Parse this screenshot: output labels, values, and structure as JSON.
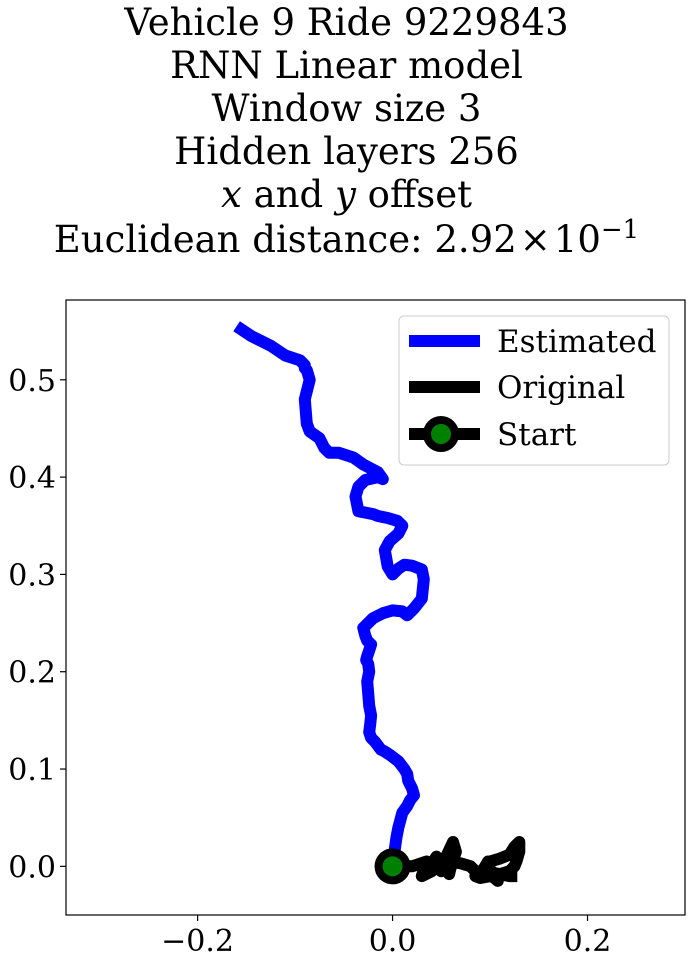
{
  "chart_data": {
    "type": "line",
    "title_lines": [
      "Vehicle 9 Ride 9229843",
      "RNN Linear model",
      "Window size 3",
      "Hidden layers 256"
    ],
    "offset_line": {
      "var_x": "x",
      "conj": " and ",
      "var_y": "y",
      "rest": " offset"
    },
    "distance_line": {
      "prefix": "Euclidean distance: ",
      "mantissa": "2.92",
      "times": "×",
      "base": "10",
      "exponent": "−1"
    },
    "xlim": [
      -0.335,
      0.3
    ],
    "ylim": [
      -0.05,
      0.582
    ],
    "x_ticks": [
      -0.2,
      0.0,
      0.2
    ],
    "x_tick_labels": [
      "−0.2",
      "0.0",
      "0.2"
    ],
    "y_ticks": [
      0.0,
      0.1,
      0.2,
      0.3,
      0.4,
      0.5
    ],
    "y_tick_labels": [
      "0.0",
      "0.1",
      "0.2",
      "0.3",
      "0.4",
      "0.5"
    ],
    "legend_position": "upper right",
    "series": [
      {
        "name": "Estimated",
        "color": "#0000ff",
        "x": [
          0.0,
          0.002,
          0.004,
          0.006,
          0.01,
          0.015,
          0.018,
          0.022,
          0.02,
          0.016,
          0.015,
          0.012,
          0.006,
          -0.002,
          -0.008,
          -0.012,
          -0.018,
          -0.022,
          -0.024,
          -0.023,
          -0.022,
          -0.024,
          -0.025,
          -0.026,
          -0.024,
          -0.025,
          -0.027,
          -0.026,
          -0.024,
          -0.022,
          -0.026,
          -0.028,
          -0.03,
          -0.02,
          -0.01,
          0.0,
          0.01,
          0.015,
          0.022,
          0.03,
          0.032,
          0.03,
          0.02,
          0.012,
          0.006,
          0.0,
          -0.005,
          -0.008,
          -0.003,
          0.006,
          0.01,
          0.005,
          -0.005,
          -0.015,
          -0.02,
          -0.035,
          -0.038,
          -0.035,
          -0.028,
          -0.015,
          -0.01,
          -0.015,
          -0.03,
          -0.04,
          -0.055,
          -0.065,
          -0.07,
          -0.075,
          -0.085,
          -0.088,
          -0.09,
          -0.085,
          -0.088,
          -0.09,
          -0.09,
          -0.092,
          -0.095,
          -0.11,
          -0.125,
          -0.135,
          -0.145,
          -0.16
        ],
        "y": [
          0.0,
          0.015,
          0.03,
          0.04,
          0.055,
          0.062,
          0.068,
          0.073,
          0.08,
          0.088,
          0.095,
          0.1,
          0.108,
          0.114,
          0.118,
          0.12,
          0.128,
          0.132,
          0.138,
          0.145,
          0.155,
          0.165,
          0.178,
          0.19,
          0.2,
          0.208,
          0.212,
          0.216,
          0.222,
          0.228,
          0.232,
          0.237,
          0.245,
          0.255,
          0.26,
          0.263,
          0.262,
          0.258,
          0.265,
          0.275,
          0.295,
          0.305,
          0.309,
          0.31,
          0.306,
          0.3,
          0.308,
          0.325,
          0.334,
          0.342,
          0.35,
          0.355,
          0.358,
          0.36,
          0.362,
          0.365,
          0.38,
          0.39,
          0.397,
          0.4,
          0.398,
          0.405,
          0.413,
          0.42,
          0.425,
          0.425,
          0.43,
          0.44,
          0.447,
          0.455,
          0.48,
          0.5,
          0.51,
          0.512,
          0.515,
          0.517,
          0.52,
          0.525,
          0.535,
          0.54,
          0.545,
          0.555
        ]
      },
      {
        "name": "Original",
        "color": "#000000",
        "x": [
          0.0,
          0.02,
          0.035,
          0.03,
          0.04,
          0.045,
          0.04,
          0.05,
          0.055,
          0.062,
          0.065,
          0.06,
          0.058,
          0.06,
          0.07,
          0.08,
          0.085,
          0.09,
          0.095,
          0.098,
          0.1,
          0.105,
          0.108,
          0.102,
          0.096,
          0.1,
          0.11,
          0.12,
          0.125,
          0.13,
          0.13,
          0.127,
          0.125,
          0.12,
          0.11,
          0.1,
          0.09,
          0.085,
          0.09,
          0.1,
          0.11,
          0.12,
          0.128
        ],
        "y": [
          0.0,
          0.0,
          0.005,
          -0.01,
          -0.005,
          0.01,
          0.002,
          -0.005,
          0.01,
          0.025,
          0.015,
          0.0,
          -0.008,
          0.005,
          0.003,
          0.0,
          -0.005,
          -0.008,
          0.0,
          0.005,
          -0.003,
          -0.01,
          -0.015,
          -0.01,
          0.0,
          0.005,
          0.008,
          0.012,
          0.02,
          0.025,
          0.015,
          0.005,
          0.0,
          -0.005,
          -0.008,
          -0.01,
          -0.012,
          -0.01,
          -0.008,
          -0.006,
          -0.008,
          -0.01,
          -0.01
        ]
      }
    ],
    "start_point": {
      "name": "Start",
      "x": 0.0,
      "y": 0.0,
      "face_color": "#008000",
      "edge_color": "#000000"
    }
  }
}
